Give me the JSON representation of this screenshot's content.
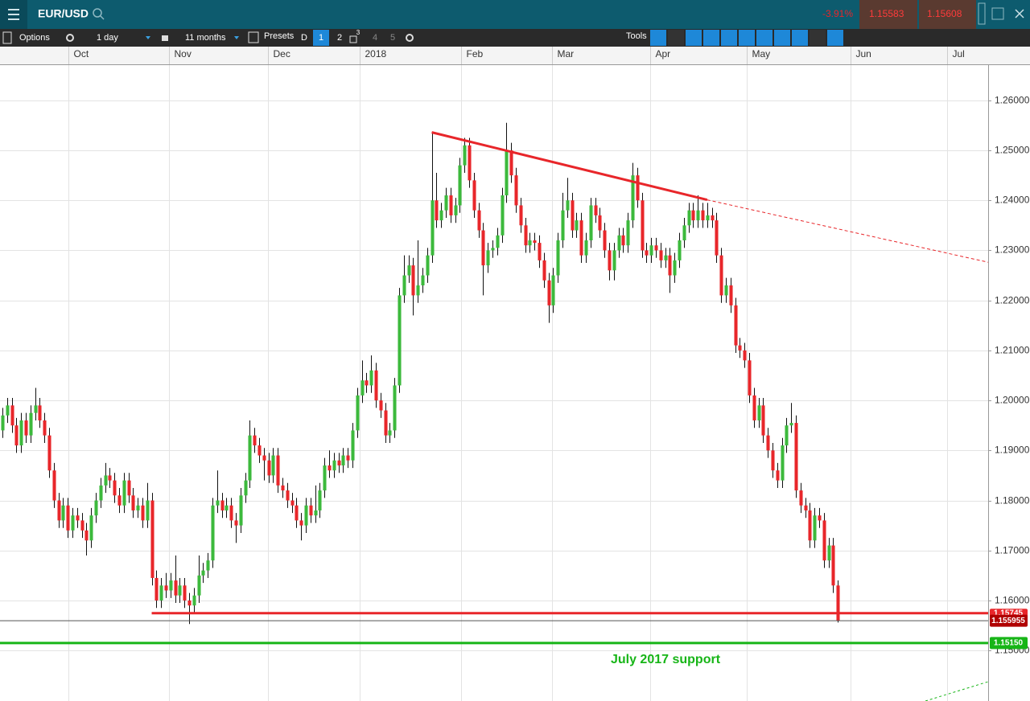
{
  "header": {
    "symbol": "EUR/USD",
    "change": "-3.91%",
    "sell": "1.15583",
    "buy": "1.15608"
  },
  "toolbar": {
    "options": "Options",
    "interval": "1 day",
    "range": "11 months",
    "presets": "Presets",
    "periods": [
      "D",
      "1",
      "2",
      "4",
      "5"
    ],
    "badge": "3",
    "tools": "Tools"
  },
  "chart_data": {
    "type": "candlestick",
    "up_color": "#3cb93c",
    "down_color": "#e8262a",
    "grid": true,
    "xlim": [
      0,
      211.7
    ],
    "xticks": [
      {
        "value": 14.7,
        "label": "Oct"
      },
      {
        "value": 36.2,
        "label": "Nov"
      },
      {
        "value": 57.4,
        "label": "Dec"
      },
      {
        "value": 77.1,
        "label": "2018"
      },
      {
        "value": 98.8,
        "label": "Feb"
      },
      {
        "value": 118.3,
        "label": "Mar"
      },
      {
        "value": 139.3,
        "label": "Apr"
      },
      {
        "value": 160,
        "label": "May"
      },
      {
        "value": 182.2,
        "label": "Jun"
      },
      {
        "value": 202.9,
        "label": "Jul"
      }
    ],
    "ylim": [
      1.1399,
      1.2672
    ],
    "yticks": [
      {
        "value": 1.15,
        "label": "1.15000"
      },
      {
        "value": 1.16,
        "label": "1.16000"
      },
      {
        "value": 1.17,
        "label": "1.17000"
      },
      {
        "value": 1.18,
        "label": "1.18000"
      },
      {
        "value": 1.19,
        "label": "1.19000"
      },
      {
        "value": 1.2,
        "label": "1.20000"
      },
      {
        "value": 1.21,
        "label": "1.21000"
      },
      {
        "value": 1.22,
        "label": "1.22000"
      },
      {
        "value": 1.23,
        "label": "1.23000"
      },
      {
        "value": 1.24,
        "label": "1.24000"
      },
      {
        "value": 1.25,
        "label": "1.25000"
      },
      {
        "value": 1.26,
        "label": "1.26000"
      }
    ],
    "candles": [
      [
        1.194,
        1.1985,
        1.1925,
        1.197
      ],
      [
        1.197,
        1.2005,
        1.1955,
        1.199
      ],
      [
        1.199,
        1.2005,
        1.1935,
        1.195
      ],
      [
        1.195,
        1.1965,
        1.1895,
        1.191
      ],
      [
        1.191,
        1.1975,
        1.1895,
        1.196
      ],
      [
        1.196,
        1.1975,
        1.1915,
        1.193
      ],
      [
        1.193,
        1.199,
        1.1915,
        1.1975
      ],
      [
        1.1975,
        1.2025,
        1.196,
        1.199
      ],
      [
        1.199,
        1.2005,
        1.1945,
        1.196
      ],
      [
        1.196,
        1.1975,
        1.1915,
        1.193
      ],
      [
        1.193,
        1.1945,
        1.1845,
        1.186
      ],
      [
        1.186,
        1.1875,
        1.1785,
        1.18
      ],
      [
        1.18,
        1.1815,
        1.1745,
        1.176
      ],
      [
        1.176,
        1.1805,
        1.1745,
        1.179
      ],
      [
        1.179,
        1.1805,
        1.1725,
        1.174
      ],
      [
        1.174,
        1.1785,
        1.1725,
        1.177
      ],
      [
        1.177,
        1.1785,
        1.1745,
        1.176
      ],
      [
        1.176,
        1.1775,
        1.1725,
        1.174
      ],
      [
        1.174,
        1.1755,
        1.169,
        1.172
      ],
      [
        1.172,
        1.1785,
        1.1705,
        1.177
      ],
      [
        1.177,
        1.1815,
        1.1755,
        1.18
      ],
      [
        1.18,
        1.1845,
        1.1785,
        1.183
      ],
      [
        1.183,
        1.1875,
        1.1815,
        1.185
      ],
      [
        1.185,
        1.1865,
        1.1825,
        1.184
      ],
      [
        1.184,
        1.1855,
        1.1795,
        1.181
      ],
      [
        1.181,
        1.1825,
        1.1775,
        1.179
      ],
      [
        1.179,
        1.1855,
        1.1775,
        1.184
      ],
      [
        1.184,
        1.1855,
        1.1795,
        1.181
      ],
      [
        1.181,
        1.1825,
        1.1765,
        1.178
      ],
      [
        1.178,
        1.1805,
        1.1765,
        1.179
      ],
      [
        1.179,
        1.1805,
        1.1745,
        1.176
      ],
      [
        1.176,
        1.1835,
        1.1745,
        1.18
      ],
      [
        1.18,
        1.1815,
        1.163,
        1.1645
      ],
      [
        1.1645,
        1.166,
        1.1585,
        1.16
      ],
      [
        1.16,
        1.1645,
        1.1585,
        1.163
      ],
      [
        1.163,
        1.1655,
        1.1605,
        1.162
      ],
      [
        1.162,
        1.1655,
        1.1605,
        1.164
      ],
      [
        1.164,
        1.169,
        1.1595,
        1.161
      ],
      [
        1.161,
        1.1645,
        1.1595,
        1.163
      ],
      [
        1.163,
        1.1645,
        1.1585,
        1.16
      ],
      [
        1.16,
        1.1615,
        1.1553,
        1.159
      ],
      [
        1.159,
        1.1625,
        1.1575,
        1.161
      ],
      [
        1.161,
        1.169,
        1.1595,
        1.165
      ],
      [
        1.165,
        1.1675,
        1.1635,
        1.166
      ],
      [
        1.166,
        1.1695,
        1.1645,
        1.168
      ],
      [
        1.168,
        1.1805,
        1.1665,
        1.179
      ],
      [
        1.179,
        1.186,
        1.1775,
        1.18
      ],
      [
        1.18,
        1.1815,
        1.1765,
        1.178
      ],
      [
        1.178,
        1.1805,
        1.1765,
        1.179
      ],
      [
        1.179,
        1.1805,
        1.1745,
        1.176
      ],
      [
        1.176,
        1.1775,
        1.1715,
        1.175
      ],
      [
        1.175,
        1.1825,
        1.1735,
        1.181
      ],
      [
        1.181,
        1.1855,
        1.1795,
        1.184
      ],
      [
        1.184,
        1.196,
        1.1825,
        1.193
      ],
      [
        1.193,
        1.1945,
        1.1895,
        1.191
      ],
      [
        1.191,
        1.1925,
        1.1875,
        1.189
      ],
      [
        1.189,
        1.1905,
        1.184,
        1.188
      ],
      [
        1.188,
        1.1895,
        1.1835,
        1.185
      ],
      [
        1.185,
        1.1905,
        1.1835,
        1.189
      ],
      [
        1.189,
        1.1905,
        1.1815,
        1.183
      ],
      [
        1.183,
        1.1845,
        1.1805,
        1.182
      ],
      [
        1.182,
        1.1835,
        1.1785,
        1.18
      ],
      [
        1.18,
        1.1815,
        1.1775,
        1.179
      ],
      [
        1.179,
        1.1805,
        1.1745,
        1.176
      ],
      [
        1.176,
        1.1775,
        1.172,
        1.175
      ],
      [
        1.175,
        1.1805,
        1.1735,
        1.179
      ],
      [
        1.179,
        1.1805,
        1.1755,
        1.177
      ],
      [
        1.177,
        1.183,
        1.1755,
        1.178
      ],
      [
        1.178,
        1.1835,
        1.1765,
        1.182
      ],
      [
        1.182,
        1.1885,
        1.1805,
        1.187
      ],
      [
        1.187,
        1.19,
        1.1845,
        1.186
      ],
      [
        1.186,
        1.1895,
        1.1845,
        1.188
      ],
      [
        1.188,
        1.1895,
        1.1855,
        1.187
      ],
      [
        1.187,
        1.1905,
        1.1855,
        1.189
      ],
      [
        1.189,
        1.1905,
        1.1865,
        1.188
      ],
      [
        1.188,
        1.1955,
        1.1865,
        1.194
      ],
      [
        1.194,
        1.2025,
        1.1925,
        1.201
      ],
      [
        1.201,
        1.208,
        1.1995,
        1.204
      ],
      [
        1.204,
        1.2055,
        1.2015,
        1.203
      ],
      [
        1.203,
        1.209,
        1.2015,
        1.206
      ],
      [
        1.206,
        1.2075,
        1.1985,
        1.2
      ],
      [
        1.2,
        1.2015,
        1.1965,
        1.198
      ],
      [
        1.198,
        1.1995,
        1.1915,
        1.193
      ],
      [
        1.193,
        1.1955,
        1.1915,
        1.194
      ],
      [
        1.194,
        1.2045,
        1.1925,
        1.203
      ],
      [
        1.203,
        1.2225,
        1.2015,
        1.221
      ],
      [
        1.221,
        1.229,
        1.2195,
        1.225
      ],
      [
        1.225,
        1.229,
        1.2235,
        1.227
      ],
      [
        1.227,
        1.2285,
        1.217,
        1.221
      ],
      [
        1.221,
        1.232,
        1.2195,
        1.223
      ],
      [
        1.223,
        1.2265,
        1.2215,
        1.225
      ],
      [
        1.225,
        1.2305,
        1.2235,
        1.229
      ],
      [
        1.229,
        1.2535,
        1.2275,
        1.24
      ],
      [
        1.24,
        1.2455,
        1.2345,
        1.236
      ],
      [
        1.236,
        1.2395,
        1.2345,
        1.238
      ],
      [
        1.238,
        1.2425,
        1.2365,
        1.241
      ],
      [
        1.241,
        1.2425,
        1.2355,
        1.237
      ],
      [
        1.237,
        1.2405,
        1.2355,
        1.239
      ],
      [
        1.239,
        1.2485,
        1.2375,
        1.247
      ],
      [
        1.247,
        1.2525,
        1.2455,
        1.251
      ],
      [
        1.251,
        1.2525,
        1.2425,
        1.244
      ],
      [
        1.244,
        1.2455,
        1.2365,
        1.238
      ],
      [
        1.238,
        1.2395,
        1.2325,
        1.234
      ],
      [
        1.234,
        1.2355,
        1.221,
        1.227
      ],
      [
        1.227,
        1.2315,
        1.2255,
        1.23
      ],
      [
        1.23,
        1.232,
        1.2285,
        1.2305
      ],
      [
        1.2305,
        1.2345,
        1.229,
        1.233
      ],
      [
        1.233,
        1.2425,
        1.2315,
        1.241
      ],
      [
        1.241,
        1.2555,
        1.2395,
        1.25
      ],
      [
        1.25,
        1.2515,
        1.2435,
        1.245
      ],
      [
        1.245,
        1.2465,
        1.2375,
        1.239
      ],
      [
        1.239,
        1.2405,
        1.2335,
        1.235
      ],
      [
        1.235,
        1.2365,
        1.2295,
        1.231
      ],
      [
        1.231,
        1.2335,
        1.2295,
        1.232
      ],
      [
        1.232,
        1.2335,
        1.23,
        1.2315
      ],
      [
        1.2315,
        1.233,
        1.2265,
        1.228
      ],
      [
        1.228,
        1.2295,
        1.2225,
        1.224
      ],
      [
        1.224,
        1.2255,
        1.2155,
        1.219
      ],
      [
        1.219,
        1.2265,
        1.2175,
        1.225
      ],
      [
        1.225,
        1.2335,
        1.2235,
        1.232
      ],
      [
        1.232,
        1.2415,
        1.2305,
        1.238
      ],
      [
        1.238,
        1.2445,
        1.2365,
        1.24
      ],
      [
        1.24,
        1.2415,
        1.2325,
        1.234
      ],
      [
        1.234,
        1.2375,
        1.2325,
        1.236
      ],
      [
        1.236,
        1.2375,
        1.2275,
        1.229
      ],
      [
        1.229,
        1.2335,
        1.2275,
        1.232
      ],
      [
        1.232,
        1.2405,
        1.2305,
        1.239
      ],
      [
        1.239,
        1.2405,
        1.2355,
        1.237
      ],
      [
        1.237,
        1.2385,
        1.2325,
        1.234
      ],
      [
        1.234,
        1.2355,
        1.2285,
        1.23
      ],
      [
        1.23,
        1.2315,
        1.224,
        1.226
      ],
      [
        1.226,
        1.2315,
        1.224,
        1.23
      ],
      [
        1.23,
        1.2345,
        1.2285,
        1.233
      ],
      [
        1.233,
        1.2345,
        1.2295,
        1.231
      ],
      [
        1.231,
        1.2375,
        1.2295,
        1.236
      ],
      [
        1.236,
        1.2475,
        1.2345,
        1.245
      ],
      [
        1.245,
        1.2465,
        1.2385,
        1.24
      ],
      [
        1.24,
        1.2415,
        1.2285,
        1.23
      ],
      [
        1.23,
        1.2315,
        1.2275,
        1.229
      ],
      [
        1.229,
        1.2325,
        1.2275,
        1.231
      ],
      [
        1.231,
        1.2325,
        1.2285,
        1.23
      ],
      [
        1.23,
        1.2315,
        1.2265,
        1.228
      ],
      [
        1.228,
        1.2305,
        1.2265,
        1.229
      ],
      [
        1.229,
        1.2305,
        1.2215,
        1.225
      ],
      [
        1.225,
        1.2295,
        1.2235,
        1.228
      ],
      [
        1.228,
        1.2335,
        1.2265,
        1.232
      ],
      [
        1.232,
        1.2365,
        1.2305,
        1.235
      ],
      [
        1.235,
        1.2395,
        1.2335,
        1.238
      ],
      [
        1.238,
        1.2395,
        1.2345,
        1.236
      ],
      [
        1.236,
        1.241,
        1.2345,
        1.238
      ],
      [
        1.238,
        1.2395,
        1.2345,
        1.236
      ],
      [
        1.236,
        1.2395,
        1.2345,
        1.237
      ],
      [
        1.237,
        1.2385,
        1.2345,
        1.236
      ],
      [
        1.236,
        1.2375,
        1.2275,
        1.229
      ],
      [
        1.229,
        1.2305,
        1.2195,
        1.221
      ],
      [
        1.221,
        1.2245,
        1.2195,
        1.223
      ],
      [
        1.223,
        1.2245,
        1.2175,
        1.219
      ],
      [
        1.219,
        1.2205,
        1.2095,
        1.211
      ],
      [
        1.211,
        1.2125,
        1.2085,
        1.21
      ],
      [
        1.21,
        1.2115,
        1.2065,
        1.208
      ],
      [
        1.208,
        1.2095,
        1.1995,
        1.201
      ],
      [
        1.201,
        1.2025,
        1.1945,
        1.196
      ],
      [
        1.196,
        1.2005,
        1.1945,
        1.199
      ],
      [
        1.199,
        1.2005,
        1.1915,
        1.193
      ],
      [
        1.193,
        1.1945,
        1.1885,
        1.19
      ],
      [
        1.19,
        1.1915,
        1.1845,
        1.186
      ],
      [
        1.186,
        1.1875,
        1.1825,
        1.184
      ],
      [
        1.184,
        1.1925,
        1.1825,
        1.191
      ],
      [
        1.191,
        1.1965,
        1.1895,
        1.195
      ],
      [
        1.195,
        1.1995,
        1.1935,
        1.1955
      ],
      [
        1.1955,
        1.197,
        1.1805,
        1.182
      ],
      [
        1.182,
        1.1835,
        1.1775,
        1.179
      ],
      [
        1.179,
        1.1805,
        1.1765,
        1.178
      ],
      [
        1.178,
        1.1795,
        1.1705,
        1.172
      ],
      [
        1.172,
        1.1785,
        1.1705,
        1.177
      ],
      [
        1.177,
        1.1785,
        1.1745,
        1.176
      ],
      [
        1.176,
        1.1775,
        1.1665,
        1.168
      ],
      [
        1.168,
        1.1725,
        1.1665,
        1.171
      ],
      [
        1.171,
        1.1725,
        1.1615,
        1.163
      ],
      [
        1.163,
        1.164,
        1.1556,
        1.155955
      ]
    ],
    "trendline": {
      "color": "#e8262a",
      "x": [
        92,
        151
      ],
      "values": [
        1.2536,
        1.2401
      ]
    },
    "trend_extension": {
      "color": "#e8262a",
      "x": [
        151,
        220
      ],
      "values": [
        1.2401,
        1.2258
      ]
    },
    "support": {
      "value": 1.15745,
      "label": "1.15745",
      "color": "#e8262a",
      "x_start": 32
    },
    "last_price": {
      "value": 1.155955,
      "label": "1.155955",
      "color": "#b00000"
    },
    "july_support": {
      "value": 1.1515,
      "label": "1.15150",
      "color": "#17b517"
    },
    "annotation": "July 2017 support"
  }
}
